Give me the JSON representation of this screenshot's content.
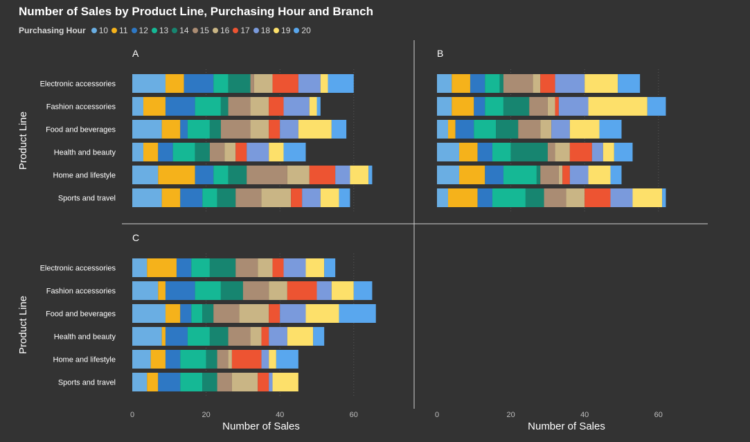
{
  "chart_data": {
    "type": "bar",
    "orientation": "horizontal",
    "stacked": true,
    "title": "Number of Sales by Product Line, Purchasing Hour and Branch",
    "legend_title": "Purchasing Hour",
    "legend_position": "top-left",
    "xlabel": "Number of Sales",
    "ylabel": "Product Line",
    "xlim": [
      0,
      75
    ],
    "xticks": [
      0,
      20,
      40,
      60
    ],
    "grid": "vertical dotted",
    "categories": [
      "Electronic accessories",
      "Fashion accessories",
      "Food and beverages",
      "Health and beauty",
      "Home and lifestyle",
      "Sports and travel"
    ],
    "series": [
      {
        "name": "10",
        "color": "#6AAEE3"
      },
      {
        "name": "11",
        "color": "#F5B21B"
      },
      {
        "name": "12",
        "color": "#2E78C4"
      },
      {
        "name": "13",
        "color": "#15B895"
      },
      {
        "name": "14",
        "color": "#178570"
      },
      {
        "name": "15",
        "color": "#AA8C73"
      },
      {
        "name": "16",
        "color": "#C9B585"
      },
      {
        "name": "17",
        "color": "#ED5432"
      },
      {
        "name": "18",
        "color": "#7A9ADC"
      },
      {
        "name": "19",
        "color": "#FDE06A"
      },
      {
        "name": "20",
        "color": "#59A7EE"
      }
    ],
    "panels": [
      {
        "label": "A",
        "values": [
          [
            9,
            5,
            8,
            4,
            6,
            1,
            5,
            7,
            6,
            2,
            7
          ],
          [
            3,
            6,
            8,
            7,
            2,
            6,
            5,
            4,
            7,
            2,
            1
          ],
          [
            8,
            5,
            2,
            6,
            3,
            8,
            5,
            3,
            5,
            9,
            4
          ],
          [
            3,
            4,
            4,
            6,
            4,
            4,
            3,
            3,
            6,
            4,
            6
          ],
          [
            7,
            10,
            5,
            4,
            5,
            11,
            6,
            7,
            4,
            5,
            1
          ],
          [
            8,
            5,
            6,
            4,
            5,
            7,
            8,
            3,
            5,
            5,
            3
          ]
        ]
      },
      {
        "label": "B",
        "values": [
          [
            4,
            5,
            4,
            4,
            1,
            8,
            2,
            4,
            8,
            9,
            6
          ],
          [
            4,
            6,
            3,
            5,
            7,
            5,
            2,
            1,
            8,
            16,
            5
          ],
          [
            3,
            2,
            5,
            6,
            6,
            6,
            3,
            0,
            5,
            8,
            6
          ],
          [
            6,
            5,
            4,
            5,
            10,
            2,
            4,
            6,
            3,
            3,
            5
          ],
          [
            6,
            7,
            5,
            9,
            1,
            5,
            1,
            2,
            5,
            6,
            3
          ],
          [
            3,
            8,
            4,
            9,
            5,
            6,
            5,
            7,
            6,
            8,
            1
          ]
        ]
      },
      {
        "label": "C",
        "values": [
          [
            4,
            8,
            4,
            5,
            7,
            6,
            4,
            3,
            6,
            5,
            3
          ],
          [
            7,
            2,
            8,
            7,
            6,
            7,
            5,
            8,
            4,
            6,
            5
          ],
          [
            9,
            4,
            3,
            3,
            3,
            7,
            8,
            3,
            7,
            9,
            10
          ],
          [
            8,
            1,
            6,
            6,
            5,
            6,
            3,
            2,
            5,
            7,
            3
          ],
          [
            5,
            4,
            4,
            7,
            3,
            3,
            1,
            8,
            2,
            2,
            6
          ],
          [
            4,
            3,
            6,
            6,
            4,
            4,
            7,
            3,
            1,
            7,
            0
          ]
        ]
      }
    ]
  }
}
